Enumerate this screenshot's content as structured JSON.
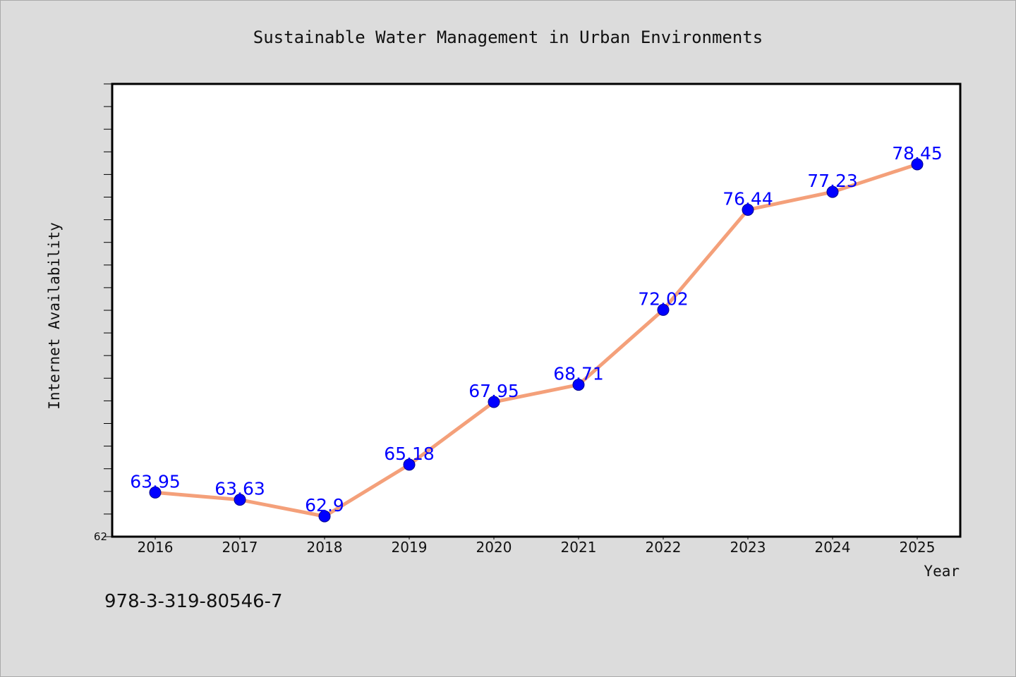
{
  "chart_data": {
    "type": "line",
    "title": "Sustainable Water Management in Urban Environments",
    "xlabel": "Year",
    "ylabel": "Internet Availability",
    "categories": [
      "2016",
      "2017",
      "2018",
      "2019",
      "2020",
      "2021",
      "2022",
      "2023",
      "2024",
      "2025"
    ],
    "values": [
      63.95,
      63.63,
      62.9,
      65.18,
      67.95,
      68.71,
      72.02,
      76.44,
      77.23,
      78.45
    ],
    "data_labels": [
      "63.95",
      "63.63",
      "62.9",
      "65.18",
      "67.95",
      "68.71",
      "72.02",
      "76.44",
      "77.23",
      "78.45"
    ],
    "y_tick_labels": [
      "62"
    ],
    "ylim": [
      62,
      82
    ],
    "grid": false,
    "legend": "none",
    "line_color": "#f4a07a",
    "marker_color": "#0000ff",
    "label_color": "#0000ff"
  },
  "footnote": "978-3-319-80546-7"
}
